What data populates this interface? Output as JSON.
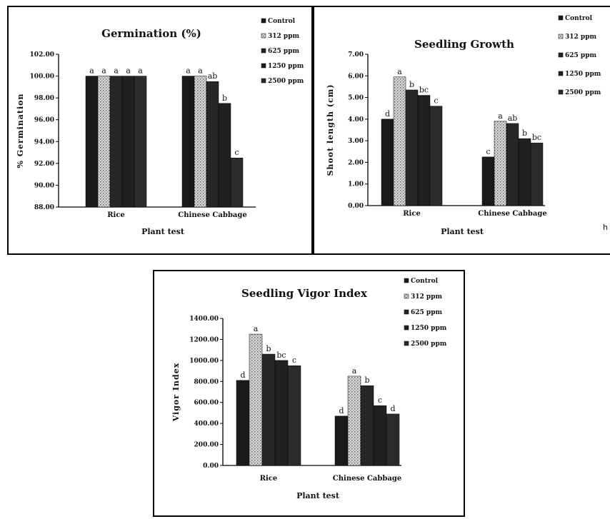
{
  "colors": {
    "control": "#1a1a1a",
    "ppm312": "#d6d6d6",
    "ppm625": "#262626",
    "ppm1250": "#202020",
    "ppm2500": "#2b2b2b",
    "axis": "#000000"
  },
  "legend_labels": [
    "Control",
    "312 ppm",
    "625 ppm",
    "1250 ppm",
    "2500 ppm"
  ],
  "stray_mark": "h",
  "chart_data": [
    {
      "type": "bar",
      "title": "Germination (%)",
      "xlabel": "Plant test",
      "ylabel": "% Germination",
      "categories": [
        "Rice",
        "Chinese Cabbage"
      ],
      "ylim": [
        88,
        102
      ],
      "yticks": [
        "88.00",
        "90.00",
        "92.00",
        "94.00",
        "96.00",
        "98.00",
        "100.00",
        "102.00"
      ],
      "series": [
        {
          "name": "Control",
          "values": [
            100,
            100
          ]
        },
        {
          "name": "312 ppm",
          "values": [
            100,
            100
          ]
        },
        {
          "name": "625 ppm",
          "values": [
            100,
            99.5
          ]
        },
        {
          "name": "1250 ppm",
          "values": [
            100,
            97.5
          ]
        },
        {
          "name": "2500 ppm",
          "values": [
            100,
            92.5
          ]
        }
      ],
      "significance": [
        [
          "a",
          "a",
          "a",
          "a",
          "a"
        ],
        [
          "a",
          "a",
          "ab",
          "b",
          "c"
        ]
      ],
      "legend_position": "top-right",
      "grid": false
    },
    {
      "type": "bar",
      "title": "Seedling Growth",
      "xlabel": "Plant test",
      "ylabel": "Shoot length (cm)",
      "categories": [
        "Rice",
        "Chinese Cabbage"
      ],
      "ylim": [
        0,
        7
      ],
      "yticks": [
        "0.00",
        "1.00",
        "2.00",
        "3.00",
        "4.00",
        "5.00",
        "6.00",
        "7.00"
      ],
      "series": [
        {
          "name": "Control",
          "values": [
            4.0,
            2.25
          ]
        },
        {
          "name": "312 ppm",
          "values": [
            5.95,
            3.9
          ]
        },
        {
          "name": "625 ppm",
          "values": [
            5.35,
            3.8
          ]
        },
        {
          "name": "1250 ppm",
          "values": [
            5.1,
            3.1
          ]
        },
        {
          "name": "2500 ppm",
          "values": [
            4.6,
            2.9
          ]
        }
      ],
      "significance": [
        [
          "d",
          "a",
          "b",
          "bc",
          "c"
        ],
        [
          "c",
          "a",
          "ab",
          "b",
          "bc"
        ]
      ],
      "legend_position": "top-right",
      "grid": false
    },
    {
      "type": "bar",
      "title": "Seedling Vigor Index",
      "xlabel": "Plant test",
      "ylabel": "Vigor Index",
      "categories": [
        "Rice",
        "Chinese Cabbage"
      ],
      "ylim": [
        0,
        1400
      ],
      "yticks": [
        "0.00",
        "200.00",
        "400.00",
        "600.00",
        "800.00",
        "1000.00",
        "1200.00",
        "1400.00"
      ],
      "series": [
        {
          "name": "Control",
          "values": [
            810,
            470
          ]
        },
        {
          "name": "312 ppm",
          "values": [
            1250,
            850
          ]
        },
        {
          "name": "625 ppm",
          "values": [
            1060,
            760
          ]
        },
        {
          "name": "1250 ppm",
          "values": [
            1000,
            570
          ]
        },
        {
          "name": "2500 ppm",
          "values": [
            950,
            490
          ]
        }
      ],
      "significance": [
        [
          "d",
          "a",
          "b",
          "bc",
          "c"
        ],
        [
          "d",
          "a",
          "b",
          "c",
          "d"
        ]
      ],
      "legend_position": "top-right",
      "grid": false
    }
  ]
}
